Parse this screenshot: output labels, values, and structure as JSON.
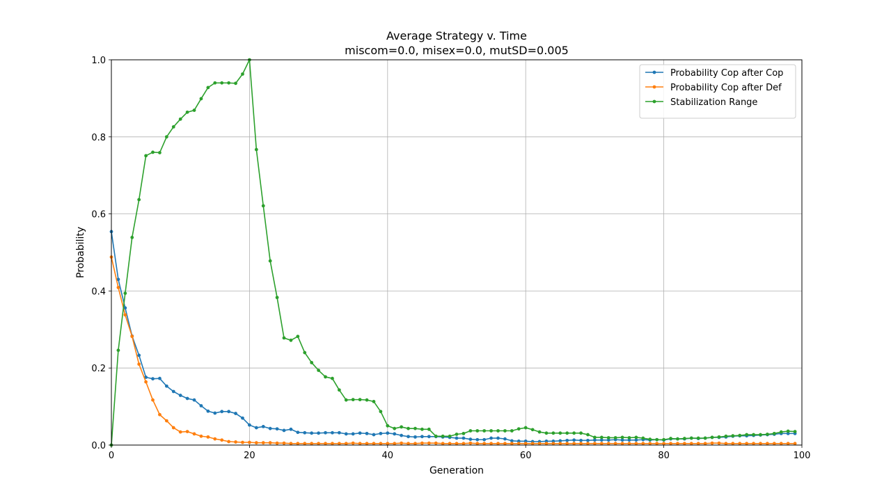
{
  "chart_data": {
    "type": "line",
    "title": "Average Strategy v. Time",
    "subtitle": "miscom=0.0, misex=0.0, mutSD=0.005",
    "xlabel": "Generation",
    "ylabel": "Probability",
    "xlim": [
      0,
      100
    ],
    "ylim": [
      0,
      1.0
    ],
    "xticks": [
      "0",
      "20",
      "40",
      "60",
      "80",
      "100"
    ],
    "yticks": [
      "0.0",
      "0.2",
      "0.4",
      "0.6",
      "0.8",
      "1.0"
    ],
    "grid": true,
    "legend_position": "top-right",
    "series": [
      {
        "name": "Probability Cop after Cop",
        "color": "#1f77b4",
        "values": [
          0.554,
          0.43,
          0.356,
          0.283,
          0.233,
          0.176,
          0.172,
          0.173,
          0.153,
          0.139,
          0.129,
          0.121,
          0.117,
          0.102,
          0.088,
          0.083,
          0.087,
          0.087,
          0.082,
          0.07,
          0.052,
          0.045,
          0.048,
          0.043,
          0.042,
          0.038,
          0.041,
          0.033,
          0.032,
          0.031,
          0.031,
          0.032,
          0.032,
          0.032,
          0.029,
          0.029,
          0.031,
          0.03,
          0.027,
          0.03,
          0.031,
          0.029,
          0.025,
          0.022,
          0.021,
          0.022,
          0.022,
          0.022,
          0.021,
          0.02,
          0.018,
          0.018,
          0.015,
          0.014,
          0.014,
          0.018,
          0.018,
          0.016,
          0.011,
          0.01,
          0.01,
          0.009,
          0.009,
          0.01,
          0.01,
          0.011,
          0.012,
          0.013,
          0.012,
          0.012,
          0.013,
          0.013,
          0.013,
          0.014,
          0.013,
          0.013,
          0.013,
          0.014,
          0.013,
          0.014,
          0.013,
          0.016,
          0.016,
          0.016,
          0.018,
          0.017,
          0.018,
          0.02,
          0.02,
          0.021,
          0.023,
          0.024,
          0.024,
          0.025,
          0.026,
          0.027,
          0.028,
          0.03,
          0.03,
          0.03
        ]
      },
      {
        "name": "Probability Cop after Def",
        "color": "#ff7f0e",
        "values": [
          0.488,
          0.409,
          0.338,
          0.282,
          0.21,
          0.164,
          0.117,
          0.079,
          0.063,
          0.045,
          0.034,
          0.035,
          0.029,
          0.023,
          0.021,
          0.016,
          0.013,
          0.009,
          0.008,
          0.007,
          0.007,
          0.006,
          0.006,
          0.006,
          0.005,
          0.005,
          0.004,
          0.004,
          0.004,
          0.004,
          0.004,
          0.004,
          0.004,
          0.004,
          0.004,
          0.005,
          0.004,
          0.004,
          0.004,
          0.004,
          0.004,
          0.004,
          0.005,
          0.004,
          0.004,
          0.005,
          0.005,
          0.005,
          0.004,
          0.004,
          0.004,
          0.004,
          0.005,
          0.004,
          0.004,
          0.004,
          0.004,
          0.004,
          0.004,
          0.004,
          0.004,
          0.004,
          0.004,
          0.004,
          0.004,
          0.004,
          0.004,
          0.004,
          0.004,
          0.004,
          0.004,
          0.004,
          0.004,
          0.004,
          0.004,
          0.004,
          0.004,
          0.004,
          0.004,
          0.004,
          0.004,
          0.004,
          0.004,
          0.004,
          0.004,
          0.004,
          0.004,
          0.005,
          0.005,
          0.004,
          0.004,
          0.004,
          0.004,
          0.004,
          0.004,
          0.004,
          0.004,
          0.004,
          0.004,
          0.004
        ]
      },
      {
        "name": "Stabilization Range",
        "color": "#2ca02c",
        "values": [
          0.0,
          0.246,
          0.394,
          0.539,
          0.637,
          0.751,
          0.76,
          0.759,
          0.8,
          0.826,
          0.846,
          0.864,
          0.869,
          0.899,
          0.928,
          0.94,
          0.94,
          0.94,
          0.939,
          0.963,
          1.0,
          0.767,
          0.621,
          0.478,
          0.383,
          0.278,
          0.272,
          0.282,
          0.24,
          0.214,
          0.194,
          0.177,
          0.173,
          0.143,
          0.117,
          0.118,
          0.118,
          0.117,
          0.113,
          0.087,
          0.05,
          0.043,
          0.047,
          0.043,
          0.043,
          0.041,
          0.041,
          0.023,
          0.023,
          0.023,
          0.028,
          0.03,
          0.037,
          0.037,
          0.037,
          0.037,
          0.037,
          0.037,
          0.037,
          0.042,
          0.045,
          0.04,
          0.034,
          0.031,
          0.031,
          0.031,
          0.031,
          0.031,
          0.031,
          0.027,
          0.02,
          0.02,
          0.019,
          0.019,
          0.02,
          0.019,
          0.02,
          0.018,
          0.015,
          0.014,
          0.014,
          0.017,
          0.016,
          0.017,
          0.018,
          0.018,
          0.018,
          0.02,
          0.021,
          0.023,
          0.024,
          0.025,
          0.027,
          0.027,
          0.027,
          0.028,
          0.03,
          0.034,
          0.036,
          0.035
        ]
      }
    ]
  }
}
